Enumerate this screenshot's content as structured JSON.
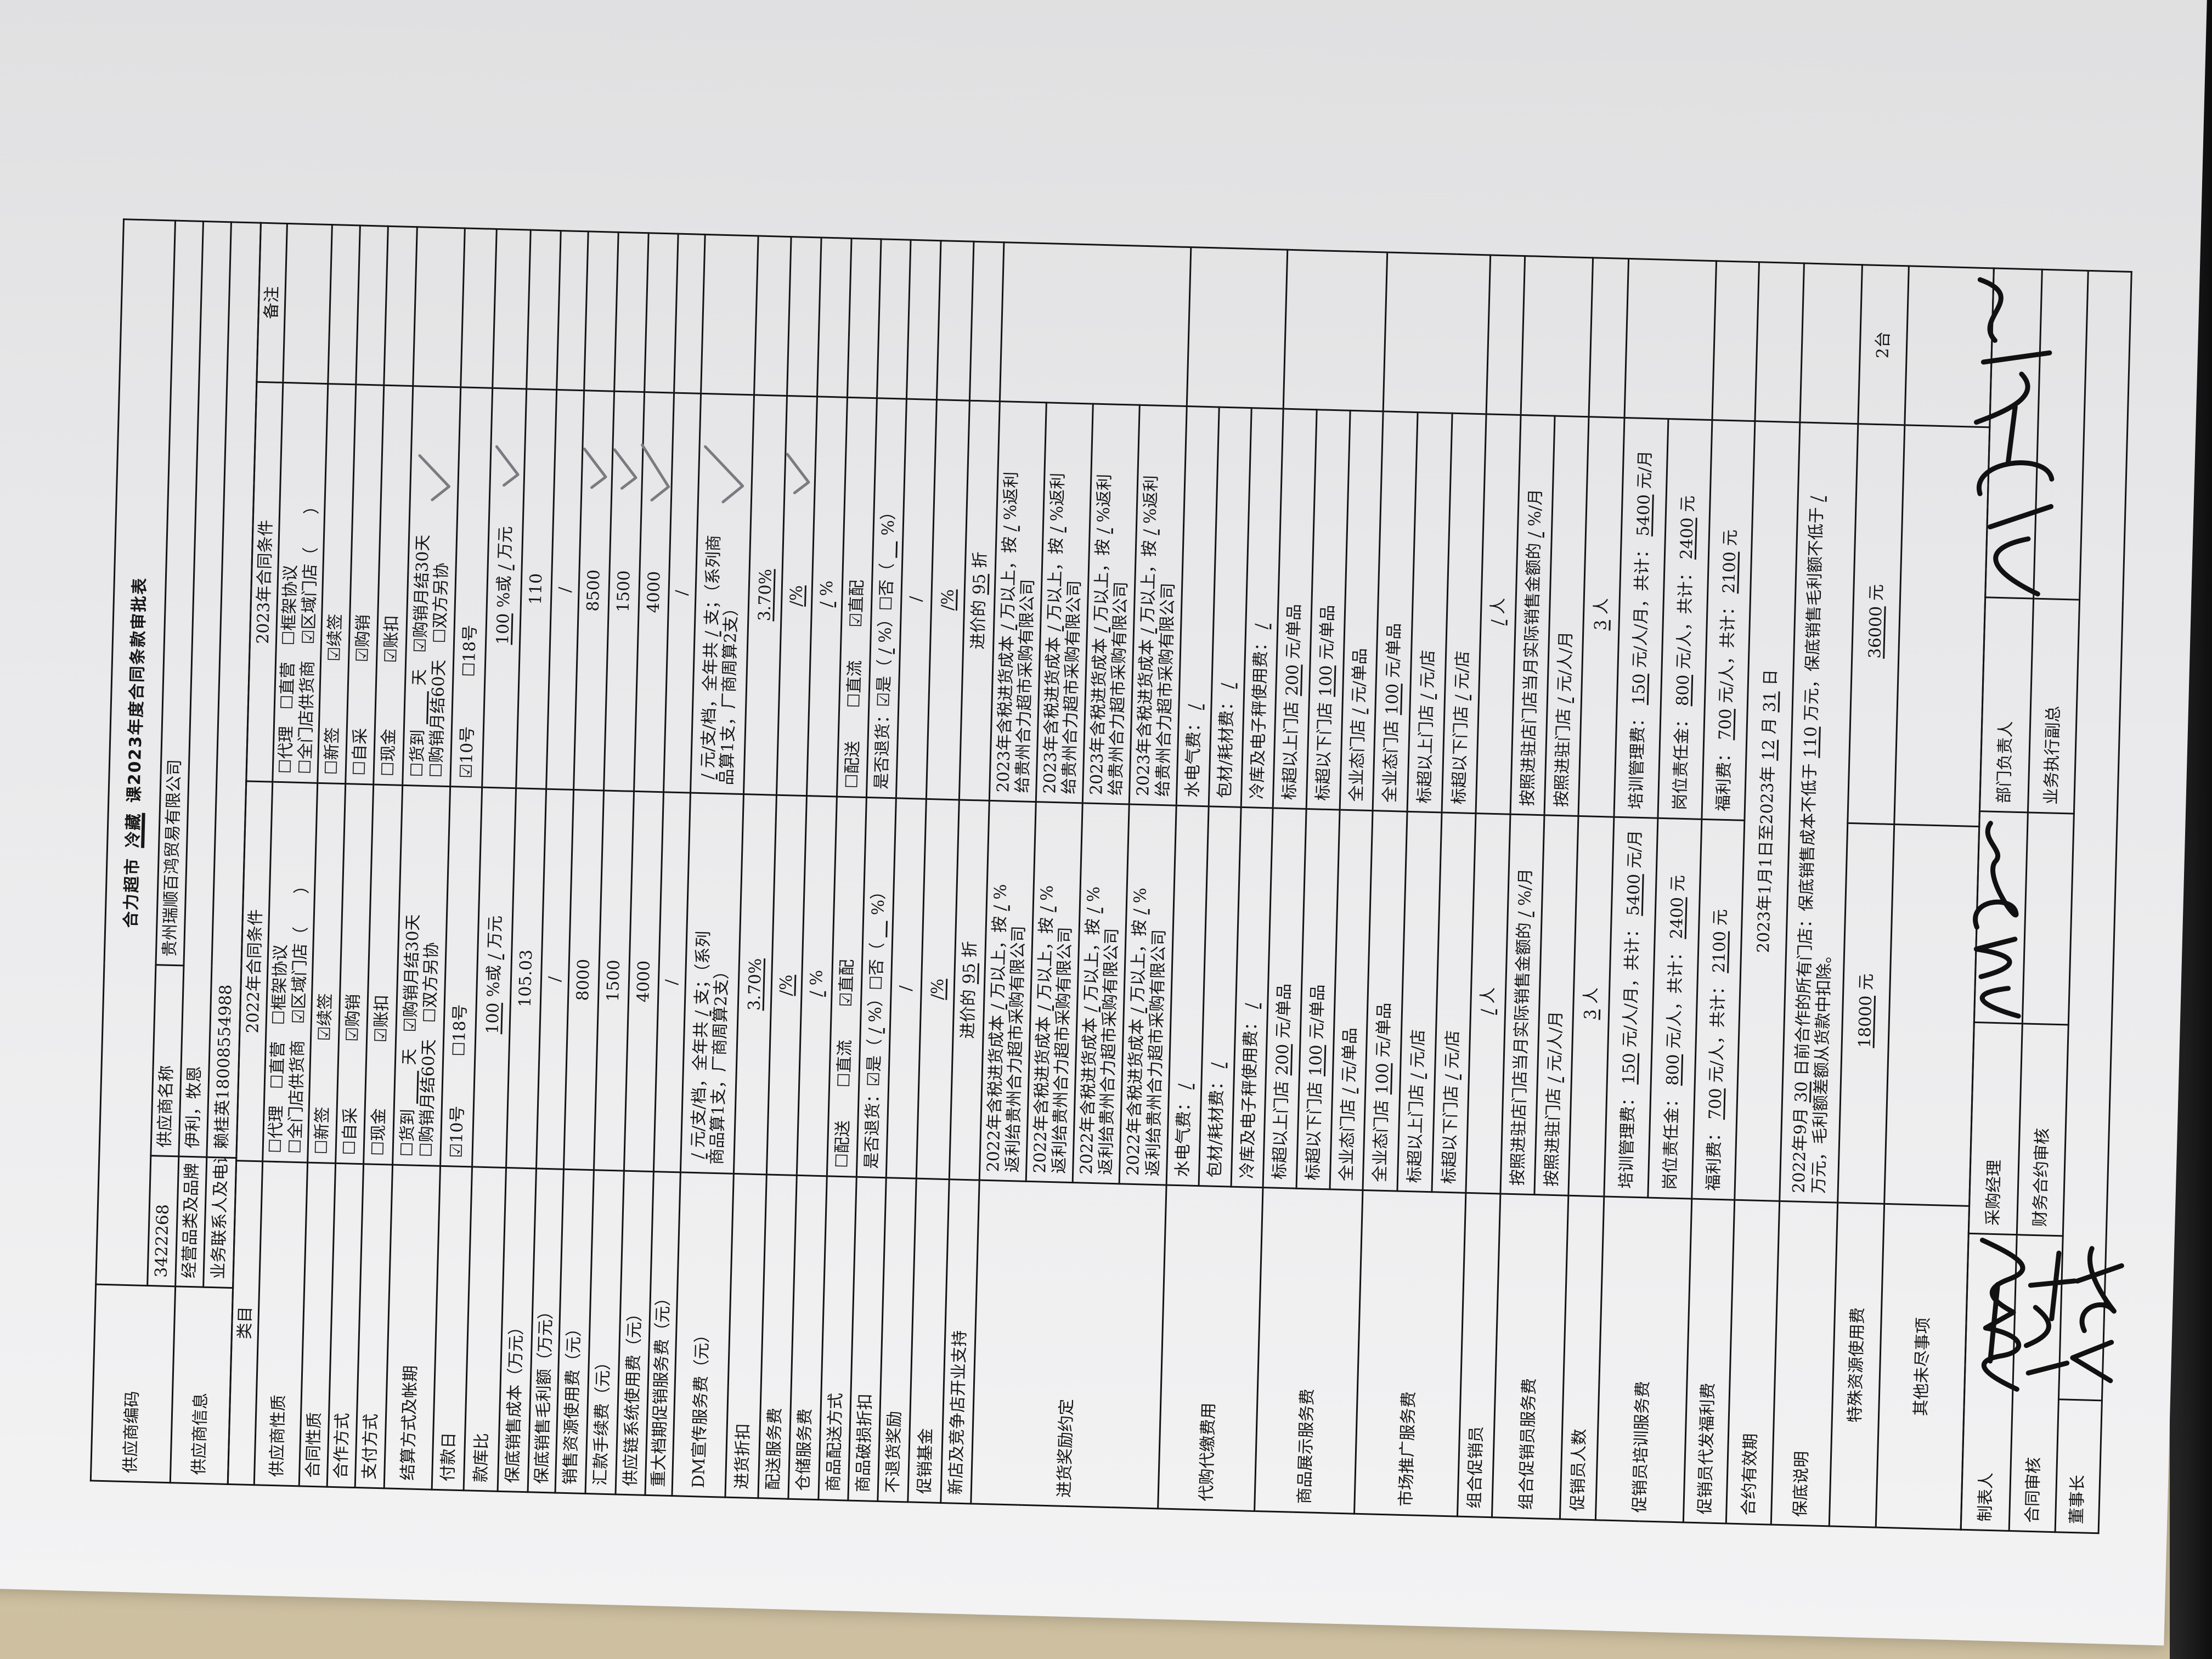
{
  "title": {
    "store": "合力超市",
    "dept": "冷藏",
    "rest": "课2023年度合同条款审批表"
  },
  "supplier": {
    "code_label": "供应商编码",
    "code": "3422268",
    "name_label": "供应商名称",
    "name": "贵州瑞顺百鸿贸易有限公司",
    "info_label": "供应商信息",
    "category_label": "经营品类及品牌",
    "category": "伊利，牧恩",
    "contact_label": "业务联系人及电话",
    "contact": "赖桂英18008554988"
  },
  "header": {
    "category": "类目",
    "y2022": "2022年合同条件",
    "y2023": "2023年合同条件",
    "note": "备注"
  },
  "rows": [
    {
      "cat": "供应商性质",
      "c22": [
        "☐代理　☐直营　☐框架协议",
        "☐全门店供货商　☑区域门店（　　）"
      ],
      "c23": [
        "☐代理　☐直营　☐框架协议",
        "☐全门店供货商　☑区域门店（　　）"
      ]
    },
    {
      "cat": "合同性质",
      "c22": [
        "☐新签　　　　☑续签"
      ],
      "c23": [
        "☐新签　　　　☑续签"
      ]
    },
    {
      "cat": "合作方式",
      "c22": [
        "☐自采　　　　☑购销"
      ],
      "c23": [
        "☐自采　　　　☑购销"
      ]
    },
    {
      "cat": "支付方式",
      "c22": [
        "☐现金　　　　☑账扣"
      ],
      "c23": [
        "☐现金　　　　☑账扣"
      ]
    },
    {
      "cat": "结算方式及帐期",
      "c22": [
        [
          "☐货到",
          {
            "u": "　　"
          },
          "天　☑购销月结30天"
        ],
        "☐购销月结60天　☐双方另协"
      ],
      "c23": [
        [
          "☐货到",
          {
            "u": "　　"
          },
          "天　☑购销月结30天"
        ],
        "☐购销月结60天　☐双方另协"
      ]
    },
    {
      "cat": "付款日",
      "c22": [
        "☑10号　　　☐18号"
      ],
      "c23": [
        "☑10号　　　☐18号"
      ]
    },
    {
      "cat": "款库比",
      "c22": [
        [
          {
            "u": "100"
          },
          "%或",
          {
            "u": "/"
          },
          "万元"
        ]
      ],
      "c23": [
        [
          {
            "u": "100"
          },
          "%或",
          {
            "u": "/"
          },
          "万元"
        ]
      ]
    },
    {
      "cat": "保底销售成本（万元）",
      "c22": [
        "105.03"
      ],
      "c23": [
        "110"
      ]
    },
    {
      "cat": "保底销售毛利额（万元）",
      "c22": [
        "/"
      ],
      "c23": [
        "/"
      ]
    },
    {
      "cat": "销售资源使用费（元）",
      "c22": [
        "8000"
      ],
      "c23": [
        "8500"
      ]
    },
    {
      "cat": "汇款手续费（元）",
      "c22": [
        "1500"
      ],
      "c23": [
        "1500"
      ]
    },
    {
      "cat": "供应链系统使用费（元）",
      "c22": [
        "4000"
      ],
      "c23": [
        "4000"
      ]
    },
    {
      "cat": "重大档期促销服务费（元）",
      "c22": [
        "/"
      ],
      "c23": [
        "/"
      ]
    },
    {
      "cat": "DM宣传服务费（元）",
      "c22": [
        [
          {
            "u": "/"
          },
          "元/支/档，全年共",
          {
            "u": "/"
          },
          "支；（系列"
        ],
        "商品算1支，厂商周算2支）"
      ],
      "c23": [
        [
          {
            "u": "/"
          },
          "元/支/档，全年共",
          {
            "u": "/"
          },
          "支；（系列商"
        ],
        "品算1支，厂商周算2支）"
      ]
    },
    {
      "cat": "进货折扣",
      "c22": [
        [
          {
            "u": "3.70%"
          }
        ]
      ],
      "c23": [
        [
          {
            "u": "3.70%"
          }
        ]
      ]
    },
    {
      "cat": "配送服务费",
      "c22": [
        [
          {
            "u": "/%"
          }
        ]
      ],
      "c23": [
        [
          {
            "u": "/%"
          }
        ]
      ]
    },
    {
      "cat": "仓储服务费",
      "c22": [
        [
          {
            "u": "/"
          },
          "%"
        ]
      ],
      "c23": [
        [
          {
            "u": "/"
          },
          "%"
        ]
      ]
    },
    {
      "cat": "商品配送方式",
      "c22": [
        "☐配送　　☐直流　　☑直配"
      ],
      "c23": [
        "☐配送　　☐直流　　☑直配"
      ]
    },
    {
      "cat": "商品破损折扣",
      "c22": [
        [
          "是否退货：☑是（",
          {
            "u": "/"
          },
          "%）☐否（",
          {
            "u": "　"
          },
          "%）"
        ]
      ],
      "c23": [
        [
          "是否退货：☑是（",
          {
            "u": "/"
          },
          "%）☐否（",
          {
            "u": "　"
          },
          "%）"
        ]
      ]
    },
    {
      "cat": "不退货奖励",
      "c22": [
        "/"
      ],
      "c23": [
        "/"
      ]
    },
    {
      "cat": "促销基金",
      "c22": [
        [
          {
            "u": "/%"
          }
        ]
      ],
      "c23": [
        [
          {
            "u": "/%"
          }
        ]
      ]
    },
    {
      "cat": "新店及竞争店开业支持",
      "c22": [
        [
          "进价的",
          {
            "u": "95"
          },
          "折"
        ]
      ],
      "c23": [
        [
          "进价的",
          {
            "u": "95"
          },
          "折"
        ]
      ]
    },
    {
      "cat": "进货奖励约定",
      "sub": [
        {
          "c22": [
            [
              "2022年含税进货成本",
              {
                "u": "/"
              },
              "万以上，按",
              {
                "u": "/"
              },
              "%"
            ],
            "返利给贵州合力超市采购有限公司"
          ],
          "c23": [
            [
              "2023年含税进货成本",
              {
                "u": "/"
              },
              "万以上，按",
              {
                "u": "/"
              },
              "%返利"
            ],
            "给贵州合力超市采购有限公司"
          ]
        },
        {
          "c22": [
            [
              "2022年含税进货成本",
              {
                "u": "/"
              },
              "万以上，按",
              {
                "u": "/"
              },
              "%"
            ],
            "返利给贵州合力超市采购有限公司"
          ],
          "c23": [
            [
              "2023年含税进货成本",
              {
                "u": "/"
              },
              "万以上，按",
              {
                "u": "/"
              },
              "%返利"
            ],
            "给贵州合力超市采购有限公司"
          ]
        },
        {
          "c22": [
            [
              "2022年含税进货成本",
              {
                "u": "/"
              },
              "万以上，按",
              {
                "u": "/"
              },
              "%"
            ],
            "返利给贵州合力超市采购有限公司"
          ],
          "c23": [
            [
              "2023年含税进货成本",
              {
                "u": "/"
              },
              "万以上，按",
              {
                "u": "/"
              },
              "%返利"
            ],
            "给贵州合力超市采购有限公司"
          ]
        },
        {
          "c22": [
            [
              "2022年含税进货成本",
              {
                "u": "/"
              },
              "万以上，按",
              {
                "u": "/"
              },
              "%"
            ],
            "返利给贵州合力超市采购有限公司"
          ],
          "c23": [
            [
              "2023年含税进货成本",
              {
                "u": "/"
              },
              "万以上，按",
              {
                "u": "/"
              },
              "%返利"
            ],
            "给贵州合力超市采购有限公司"
          ]
        }
      ]
    },
    {
      "cat": "代购代缴费用",
      "sub": [
        {
          "c22": [
            [
              "水电气费：",
              {
                "u": "/"
              }
            ]
          ],
          "c23": [
            [
              "水电气费：",
              {
                "u": "/"
              }
            ]
          ]
        },
        {
          "c22": [
            [
              "包材/耗材费：",
              {
                "u": "/"
              }
            ]
          ],
          "c23": [
            [
              "包材/耗材费：",
              {
                "u": "/"
              }
            ]
          ]
        },
        {
          "c22": [
            [
              "冷库及电子秤使用费：",
              {
                "u": "/"
              }
            ]
          ],
          "c23": [
            [
              "冷库及电子秤使用费：",
              {
                "u": "/"
              }
            ]
          ]
        }
      ]
    },
    {
      "cat": "商品展示服务费",
      "sub": [
        {
          "c22": [
            [
              "标超以上门店",
              {
                "u": "200"
              },
              "元/单品"
            ]
          ],
          "c23": [
            [
              "标超以上门店",
              {
                "u": "200"
              },
              "元/单品"
            ]
          ]
        },
        {
          "c22": [
            [
              "标超以下门店",
              {
                "u": "100"
              },
              "元/单品"
            ]
          ],
          "c23": [
            [
              "标超以下门店",
              {
                "u": "100"
              },
              "元/单品"
            ]
          ]
        },
        {
          "c22": [
            [
              "全业态门店",
              {
                "u": "/"
              },
              "元/单品"
            ]
          ],
          "c23": [
            [
              "全业态门店",
              {
                "u": "/"
              },
              "元/单品"
            ]
          ]
        }
      ]
    },
    {
      "cat": "市场推广服务费",
      "sub": [
        {
          "c22": [
            [
              "全业态门店",
              {
                "u": "100"
              },
              "元/单品"
            ]
          ],
          "c23": [
            [
              "全业态门店",
              {
                "u": "100"
              },
              "元/单品"
            ]
          ]
        },
        {
          "c22": [
            [
              "标超以上门店",
              {
                "u": "/"
              },
              "元/店"
            ]
          ],
          "c23": [
            [
              "标超以上门店",
              {
                "u": "/"
              },
              "元/店"
            ]
          ]
        },
        {
          "c22": [
            [
              "标超以下门店",
              {
                "u": "/"
              },
              "元/店"
            ]
          ],
          "c23": [
            [
              "标超以下门店",
              {
                "u": "/"
              },
              "元/店"
            ]
          ]
        }
      ]
    },
    {
      "cat": "组合促销员",
      "c22": [
        [
          {
            "u": "/"
          },
          "人"
        ]
      ],
      "c23": [
        [
          {
            "u": "/"
          },
          "人"
        ]
      ]
    },
    {
      "cat": "组合促销员服务费",
      "sub": [
        {
          "c22": [
            [
              "按照进驻店门店当月实际销售金额的",
              {
                "u": "/"
              },
              "%/月"
            ]
          ],
          "c23": [
            [
              "按照进驻店门店当月实际销售金额的",
              {
                "u": "/"
              },
              "%/月"
            ]
          ]
        },
        {
          "c22": [
            [
              "按照进驻门店",
              {
                "u": "/"
              },
              "元/人/月"
            ]
          ],
          "c23": [
            [
              "按照进驻门店",
              {
                "u": "/"
              },
              "元/人/月"
            ]
          ]
        }
      ]
    },
    {
      "cat": "促销员人数",
      "c22": [
        [
          {
            "u": "3"
          },
          "人"
        ]
      ],
      "c23": [
        [
          {
            "u": "3"
          },
          "人"
        ]
      ]
    },
    {
      "cat": "促销员培训服务费",
      "sub": [
        {
          "c22": [
            [
              "培训管理费：",
              {
                "u": "150"
              },
              "元/人/月，共计：",
              {
                "u": "5400"
              },
              "元/月"
            ]
          ],
          "c23": [
            [
              "培训管理费：",
              {
                "u": "150"
              },
              "元/人/月，共计：",
              {
                "u": "5400"
              },
              "元/月"
            ]
          ]
        },
        {
          "c22": [
            [
              "岗位责任金：",
              {
                "u": "800"
              },
              "元/人，共计：",
              {
                "u": "2400"
              },
              "元"
            ]
          ],
          "c23": [
            [
              "岗位责任金：",
              {
                "u": "800"
              },
              "元/人，共计：",
              {
                "u": "2400"
              },
              "元"
            ]
          ]
        }
      ]
    },
    {
      "cat": "促销员代发福利费",
      "c22": [
        [
          "福利费：",
          {
            "u": "700"
          },
          "元/人，共计：",
          {
            "u": "2100"
          },
          "元"
        ]
      ],
      "c23": [
        [
          "福利费：",
          {
            "u": "700"
          },
          "元/人，共计：",
          {
            "u": "2100"
          },
          "元"
        ]
      ]
    },
    {
      "cat": "合约有效期",
      "merged": [
        [
          "2023年1月1日至2023年",
          {
            "u": "12"
          },
          "月",
          {
            "u": "31"
          },
          "日"
        ]
      ]
    },
    {
      "cat": "保底说明",
      "merged": [
        [
          "2022年9月",
          {
            "u": "30"
          },
          "日前合作的所有门店：保底销售成本不低于",
          {
            "u": "110"
          },
          "万元，保底销售毛利额不低于",
          {
            "u": "/"
          }
        ],
        "万元，毛利额差额从货款中扣除。"
      ]
    },
    {
      "cat": "特殊资源使用费",
      "c22": [
        [
          {
            "u": "18000"
          },
          "元"
        ]
      ],
      "c23": [
        [
          {
            "u": "36000"
          },
          "元"
        ]
      ],
      "note": "2台"
    },
    {
      "cat": "其他未尽事项",
      "c22": [],
      "c23": []
    }
  ],
  "signoff": {
    "preparer": "制表人",
    "purchasing_manager": "采购经理",
    "dept_head": "部门负责人",
    "contract_review": "合同审核",
    "finance_review": "财务合约审核",
    "exec_vp": "业务执行副总",
    "chairman": "董事长"
  }
}
